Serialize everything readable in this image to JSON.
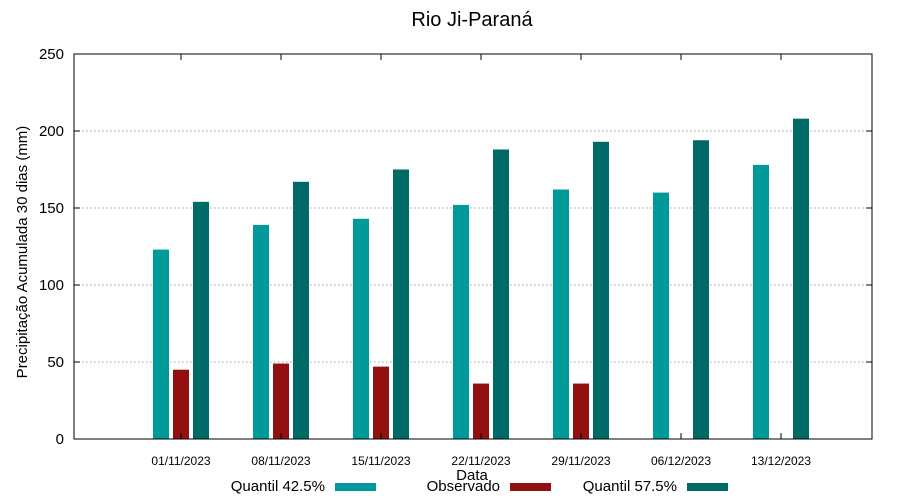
{
  "chart_data": {
    "type": "bar",
    "title": "Rio Ji-Paraná",
    "xlabel": "Data",
    "ylabel": "Precipitação Acumulada 30 dias (mm)",
    "ylim": [
      0,
      250
    ],
    "yticks": [
      0,
      50,
      100,
      150,
      200,
      250
    ],
    "grid": true,
    "legend_position": "bottom",
    "categories": [
      "01/11/2023",
      "08/11/2023",
      "15/11/2023",
      "22/11/2023",
      "29/11/2023",
      "06/12/2023",
      "13/12/2023"
    ],
    "series": [
      {
        "name": "Quantil 42.5%",
        "color": "#009a9a",
        "values": [
          123,
          139,
          143,
          152,
          162,
          160,
          178
        ]
      },
      {
        "name": "Observado",
        "color": "#931010",
        "values": [
          45,
          49,
          47,
          36,
          36,
          null,
          null
        ]
      },
      {
        "name": "Quantil 57.5%",
        "color": "#006a66",
        "values": [
          154,
          167,
          175,
          188,
          193,
          194,
          208
        ]
      }
    ]
  }
}
